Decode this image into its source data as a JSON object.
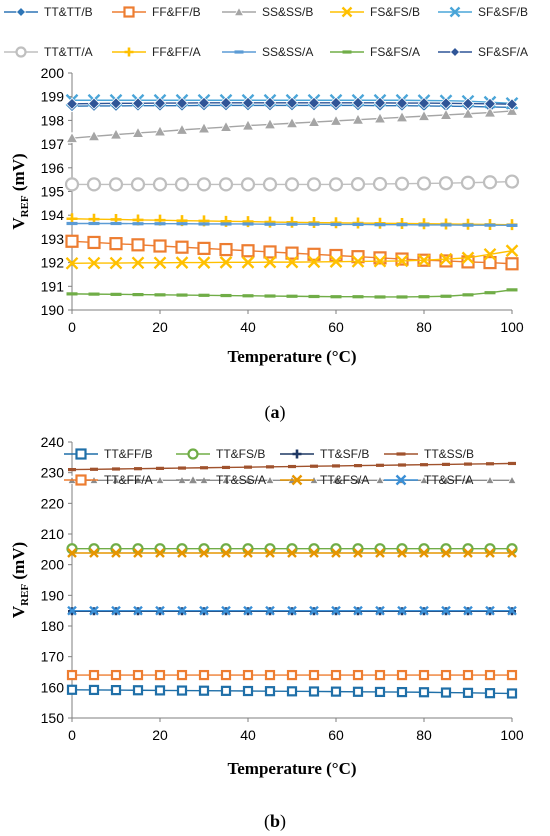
{
  "chart_data": [
    {
      "type": "line",
      "panel_label": "(a)",
      "xlabel": "Temperature (°C)",
      "ylabel": {
        "main": "V",
        "sub": "REF",
        "unit": " (mV)"
      },
      "xlim": [
        0,
        100
      ],
      "ylim": [
        190,
        200
      ],
      "xticks": [
        0,
        20,
        40,
        60,
        80,
        100
      ],
      "yticks": [
        190,
        191,
        192,
        193,
        194,
        195,
        196,
        197,
        198,
        199,
        200
      ],
      "x": [
        0,
        5,
        10,
        15,
        20,
        25,
        30,
        35,
        40,
        45,
        50,
        55,
        60,
        65,
        70,
        75,
        80,
        85,
        90,
        95,
        100
      ],
      "series": [
        {
          "name": "TT&TT/B",
          "color": "#2e75b6",
          "marker": "diamond",
          "fill": true,
          "values": [
            198.6,
            198.61,
            198.61,
            198.62,
            198.62,
            198.62,
            198.63,
            198.63,
            198.63,
            198.63,
            198.63,
            198.63,
            198.63,
            198.63,
            198.62,
            198.62,
            198.61,
            198.6,
            198.59,
            198.57,
            198.55
          ]
        },
        {
          "name": "FF&FF/B",
          "color": "#ed7d31",
          "marker": "square",
          "fill": false,
          "values": [
            192.9,
            192.85,
            192.8,
            192.75,
            192.7,
            192.65,
            192.6,
            192.55,
            192.5,
            192.45,
            192.4,
            192.35,
            192.3,
            192.25,
            192.2,
            192.15,
            192.1,
            192.07,
            192.03,
            192.0,
            191.95
          ]
        },
        {
          "name": "SS&SS/B",
          "color": "#a5a5a5",
          "marker": "triangle",
          "fill": true,
          "values": [
            197.25,
            197.33,
            197.4,
            197.47,
            197.53,
            197.6,
            197.66,
            197.72,
            197.78,
            197.83,
            197.88,
            197.93,
            197.98,
            198.03,
            198.08,
            198.13,
            198.18,
            198.23,
            198.28,
            198.33,
            198.4
          ]
        },
        {
          "name": "FS&FS/B",
          "color": "#ffc000",
          "marker": "x",
          "fill": false,
          "values": [
            191.97,
            191.98,
            191.98,
            191.99,
            191.99,
            192.0,
            192.0,
            192.01,
            192.01,
            192.02,
            192.02,
            192.03,
            192.04,
            192.05,
            192.06,
            192.07,
            192.1,
            192.15,
            192.2,
            192.35,
            192.5
          ]
        },
        {
          "name": "SF&SF/B",
          "color": "#4aa5d8",
          "marker": "x",
          "fill": false,
          "values": [
            198.85,
            198.85,
            198.85,
            198.85,
            198.85,
            198.85,
            198.85,
            198.85,
            198.85,
            198.85,
            198.85,
            198.85,
            198.85,
            198.85,
            198.85,
            198.85,
            198.84,
            198.83,
            198.81,
            198.77,
            198.72
          ]
        },
        {
          "name": "TT&TT/A",
          "color": "#bfbfbf",
          "marker": "circle",
          "fill": false,
          "values": [
            195.3,
            195.3,
            195.3,
            195.3,
            195.3,
            195.3,
            195.3,
            195.3,
            195.3,
            195.3,
            195.3,
            195.3,
            195.3,
            195.31,
            195.32,
            195.33,
            195.34,
            195.35,
            195.37,
            195.39,
            195.42
          ]
        },
        {
          "name": "FF&FF/A",
          "color": "#ffc000",
          "marker": "plus",
          "fill": false,
          "values": [
            193.85,
            193.83,
            193.82,
            193.8,
            193.79,
            193.77,
            193.76,
            193.74,
            193.73,
            193.71,
            193.7,
            193.69,
            193.68,
            193.67,
            193.66,
            193.65,
            193.64,
            193.63,
            193.62,
            193.61,
            193.6
          ]
        },
        {
          "name": "SS&SS/A",
          "color": "#5b9bd5",
          "marker": "dash",
          "fill": true,
          "values": [
            193.65,
            193.65,
            193.65,
            193.64,
            193.64,
            193.64,
            193.63,
            193.63,
            193.63,
            193.62,
            193.62,
            193.62,
            193.61,
            193.61,
            193.6,
            193.6,
            193.59,
            193.59,
            193.58,
            193.58,
            193.57
          ]
        },
        {
          "name": "FS&FS/A",
          "color": "#70ad47",
          "marker": "dash",
          "fill": true,
          "values": [
            190.68,
            190.67,
            190.66,
            190.65,
            190.64,
            190.63,
            190.62,
            190.61,
            190.6,
            190.59,
            190.58,
            190.57,
            190.56,
            190.56,
            190.55,
            190.55,
            190.56,
            190.58,
            190.64,
            190.73,
            190.85
          ]
        },
        {
          "name": "SF&SF/A",
          "color": "#2f5597",
          "marker": "diamond",
          "fill": true,
          "values": [
            198.7,
            198.71,
            198.72,
            198.72,
            198.73,
            198.73,
            198.74,
            198.74,
            198.74,
            198.74,
            198.74,
            198.74,
            198.74,
            198.74,
            198.74,
            198.73,
            198.73,
            198.72,
            198.71,
            198.7,
            198.68
          ]
        }
      ]
    },
    {
      "type": "line",
      "panel_label": "(b)",
      "xlabel": "Temperature (°C)",
      "ylabel": {
        "main": "V",
        "sub": "REF",
        "unit": " (mV)"
      },
      "xlim": [
        0,
        100
      ],
      "ylim": [
        150,
        240
      ],
      "xticks": [
        0,
        20,
        40,
        60,
        80,
        100
      ],
      "yticks": [
        150,
        160,
        170,
        180,
        190,
        200,
        210,
        220,
        230,
        240
      ],
      "x": [
        0,
        5,
        10,
        15,
        20,
        25,
        30,
        35,
        40,
        45,
        50,
        55,
        60,
        65,
        70,
        75,
        80,
        85,
        90,
        95,
        100
      ],
      "series": [
        {
          "name": "TT&FF/B",
          "color": "#1f6fa8",
          "marker": "square",
          "fill": false,
          "values": [
            159.2,
            159.15,
            159.1,
            159.05,
            159.0,
            158.95,
            158.9,
            158.85,
            158.8,
            158.75,
            158.7,
            158.65,
            158.6,
            158.55,
            158.5,
            158.45,
            158.4,
            158.3,
            158.2,
            158.1,
            158.0
          ]
        },
        {
          "name": "TT&FS/B",
          "color": "#70ad47",
          "marker": "circle",
          "fill": false,
          "values": [
            205.2,
            205.2,
            205.2,
            205.2,
            205.2,
            205.2,
            205.2,
            205.2,
            205.2,
            205.2,
            205.2,
            205.2,
            205.2,
            205.2,
            205.2,
            205.2,
            205.2,
            205.2,
            205.2,
            205.2,
            205.2
          ]
        },
        {
          "name": "TT&SF/B",
          "color": "#1f3864",
          "marker": "plus",
          "fill": false,
          "values": [
            184.8,
            184.8,
            184.8,
            184.8,
            184.8,
            184.8,
            184.8,
            184.8,
            184.8,
            184.8,
            184.8,
            184.8,
            184.8,
            184.8,
            184.8,
            184.8,
            184.8,
            184.8,
            184.8,
            184.8,
            184.8
          ]
        },
        {
          "name": "TT&SS/B",
          "color": "#a0522d",
          "marker": "dash",
          "fill": true,
          "values": [
            231.0,
            231.1,
            231.2,
            231.3,
            231.4,
            231.5,
            231.6,
            231.7,
            231.8,
            231.9,
            232.0,
            232.1,
            232.2,
            232.3,
            232.4,
            232.5,
            232.6,
            232.7,
            232.8,
            232.9,
            233.0
          ]
        },
        {
          "name": "TT&FF/A",
          "color": "#ed7d31",
          "marker": "square",
          "fill": false,
          "values": [
            164.0,
            164.0,
            164.0,
            164.0,
            164.0,
            164.0,
            164.0,
            164.0,
            164.0,
            164.0,
            164.0,
            164.0,
            164.0,
            164.0,
            164.0,
            164.0,
            164.0,
            164.0,
            164.0,
            164.0,
            164.0
          ]
        },
        {
          "name": "TT&SS/A",
          "color": "#8c8c8c",
          "marker": "triangle",
          "fill": true,
          "values": [
            227.5,
            227.5,
            227.5,
            227.5,
            227.5,
            227.5,
            227.5,
            227.5,
            227.5,
            227.5,
            227.5,
            227.5,
            227.5,
            227.5,
            227.5,
            227.5,
            227.5,
            227.5,
            227.5,
            227.5,
            227.5
          ]
        },
        {
          "name": "TT&FS/A",
          "color": "#e69500",
          "marker": "x",
          "fill": false,
          "values": [
            203.8,
            203.8,
            203.8,
            203.8,
            203.8,
            203.8,
            203.8,
            203.8,
            203.8,
            203.8,
            203.8,
            203.8,
            203.8,
            203.8,
            203.8,
            203.8,
            203.8,
            203.8,
            203.8,
            203.8,
            203.8
          ]
        },
        {
          "name": "TT&SF/A",
          "color": "#3a8fd6",
          "marker": "x",
          "fill": false,
          "values": [
            185.0,
            185.0,
            185.0,
            185.0,
            185.0,
            185.0,
            185.0,
            185.0,
            185.0,
            185.0,
            185.0,
            185.0,
            185.0,
            185.0,
            185.0,
            185.0,
            185.0,
            185.0,
            185.0,
            185.0,
            185.0
          ]
        }
      ]
    }
  ]
}
